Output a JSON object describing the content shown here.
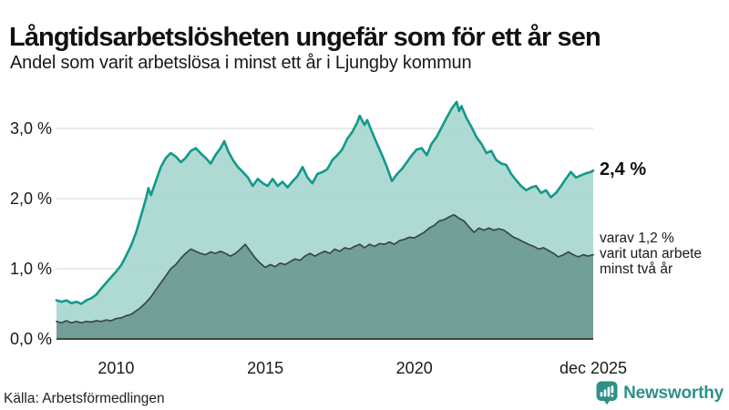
{
  "chart_data": {
    "type": "area",
    "title": "Långtidsarbetslösheten ungefär som för ett år sen",
    "subtitle": "Andel som varit arbetslösa i minst ett år i Ljungby kommun",
    "x_domain": [
      2008,
      2026
    ],
    "y_domain": [
      0,
      3.5
    ],
    "grid": true,
    "legend_position": "none",
    "colors": {
      "grid": "#d5d5d5",
      "axis": "#3d4443",
      "text": "#1a1a1a"
    },
    "y_ticks": [
      {
        "value": 0,
        "label": "0,0 %"
      },
      {
        "value": 1,
        "label": "1,0 %"
      },
      {
        "value": 2,
        "label": "2,0 %"
      },
      {
        "value": 3,
        "label": "3,0 %"
      }
    ],
    "x_ticks": [
      {
        "value": 2010,
        "label": "2010"
      },
      {
        "value": 2015,
        "label": "2015"
      },
      {
        "value": 2020,
        "label": "2020"
      },
      {
        "value": 2026,
        "label": "dec 2025"
      }
    ],
    "series": [
      {
        "name": "arbetslösa minst ett år",
        "color": "#12998b",
        "fill": "#abd8d1",
        "stroke_width": 2.6,
        "end_value": "2,4 %",
        "points": [
          [
            2008.0,
            0.55
          ],
          [
            2008.17,
            0.53
          ],
          [
            2008.33,
            0.55
          ],
          [
            2008.5,
            0.51
          ],
          [
            2008.67,
            0.53
          ],
          [
            2008.83,
            0.5
          ],
          [
            2009.0,
            0.55
          ],
          [
            2009.17,
            0.58
          ],
          [
            2009.33,
            0.63
          ],
          [
            2009.5,
            0.72
          ],
          [
            2009.67,
            0.8
          ],
          [
            2009.83,
            0.88
          ],
          [
            2010.0,
            0.96
          ],
          [
            2010.17,
            1.05
          ],
          [
            2010.33,
            1.18
          ],
          [
            2010.5,
            1.33
          ],
          [
            2010.67,
            1.52
          ],
          [
            2010.83,
            1.75
          ],
          [
            2011.0,
            2.0
          ],
          [
            2011.08,
            2.15
          ],
          [
            2011.17,
            2.05
          ],
          [
            2011.33,
            2.25
          ],
          [
            2011.5,
            2.45
          ],
          [
            2011.67,
            2.58
          ],
          [
            2011.83,
            2.65
          ],
          [
            2012.0,
            2.6
          ],
          [
            2012.17,
            2.52
          ],
          [
            2012.33,
            2.58
          ],
          [
            2012.5,
            2.68
          ],
          [
            2012.67,
            2.72
          ],
          [
            2012.83,
            2.65
          ],
          [
            2013.0,
            2.58
          ],
          [
            2013.17,
            2.5
          ],
          [
            2013.33,
            2.62
          ],
          [
            2013.5,
            2.72
          ],
          [
            2013.63,
            2.82
          ],
          [
            2013.75,
            2.68
          ],
          [
            2013.92,
            2.55
          ],
          [
            2014.08,
            2.45
          ],
          [
            2014.25,
            2.38
          ],
          [
            2014.42,
            2.3
          ],
          [
            2014.58,
            2.18
          ],
          [
            2014.75,
            2.28
          ],
          [
            2014.92,
            2.22
          ],
          [
            2015.08,
            2.18
          ],
          [
            2015.25,
            2.28
          ],
          [
            2015.42,
            2.18
          ],
          [
            2015.58,
            2.24
          ],
          [
            2015.75,
            2.16
          ],
          [
            2015.92,
            2.25
          ],
          [
            2016.08,
            2.32
          ],
          [
            2016.25,
            2.45
          ],
          [
            2016.42,
            2.3
          ],
          [
            2016.58,
            2.22
          ],
          [
            2016.75,
            2.35
          ],
          [
            2016.92,
            2.38
          ],
          [
            2017.08,
            2.42
          ],
          [
            2017.25,
            2.55
          ],
          [
            2017.42,
            2.62
          ],
          [
            2017.58,
            2.7
          ],
          [
            2017.75,
            2.85
          ],
          [
            2017.92,
            2.95
          ],
          [
            2018.08,
            3.08
          ],
          [
            2018.17,
            3.18
          ],
          [
            2018.33,
            3.05
          ],
          [
            2018.42,
            3.12
          ],
          [
            2018.58,
            2.95
          ],
          [
            2018.75,
            2.78
          ],
          [
            2018.92,
            2.62
          ],
          [
            2019.08,
            2.45
          ],
          [
            2019.25,
            2.25
          ],
          [
            2019.42,
            2.35
          ],
          [
            2019.58,
            2.42
          ],
          [
            2019.75,
            2.52
          ],
          [
            2019.92,
            2.62
          ],
          [
            2020.08,
            2.7
          ],
          [
            2020.25,
            2.72
          ],
          [
            2020.42,
            2.62
          ],
          [
            2020.58,
            2.78
          ],
          [
            2020.75,
            2.88
          ],
          [
            2020.92,
            3.02
          ],
          [
            2021.08,
            3.15
          ],
          [
            2021.25,
            3.28
          ],
          [
            2021.42,
            3.38
          ],
          [
            2021.5,
            3.25
          ],
          [
            2021.58,
            3.32
          ],
          [
            2021.75,
            3.15
          ],
          [
            2021.92,
            3.02
          ],
          [
            2022.08,
            2.88
          ],
          [
            2022.25,
            2.78
          ],
          [
            2022.42,
            2.65
          ],
          [
            2022.58,
            2.68
          ],
          [
            2022.75,
            2.55
          ],
          [
            2022.92,
            2.5
          ],
          [
            2023.08,
            2.48
          ],
          [
            2023.25,
            2.35
          ],
          [
            2023.42,
            2.26
          ],
          [
            2023.58,
            2.18
          ],
          [
            2023.75,
            2.12
          ],
          [
            2023.92,
            2.16
          ],
          [
            2024.08,
            2.18
          ],
          [
            2024.25,
            2.08
          ],
          [
            2024.42,
            2.12
          ],
          [
            2024.58,
            2.02
          ],
          [
            2024.75,
            2.08
          ],
          [
            2024.92,
            2.18
          ],
          [
            2025.08,
            2.28
          ],
          [
            2025.25,
            2.38
          ],
          [
            2025.42,
            2.3
          ],
          [
            2025.58,
            2.33
          ],
          [
            2025.75,
            2.36
          ],
          [
            2025.92,
            2.38
          ],
          [
            2026.0,
            2.4
          ]
        ]
      },
      {
        "name": "arbetslösa minst två år",
        "color": "#37474a",
        "fill": "#6f9c95",
        "stroke_width": 1.7,
        "end_value": "1,2 %",
        "points": [
          [
            2008.0,
            0.25
          ],
          [
            2008.17,
            0.23
          ],
          [
            2008.33,
            0.26
          ],
          [
            2008.5,
            0.23
          ],
          [
            2008.67,
            0.25
          ],
          [
            2008.83,
            0.23
          ],
          [
            2009.0,
            0.25
          ],
          [
            2009.17,
            0.24
          ],
          [
            2009.33,
            0.26
          ],
          [
            2009.5,
            0.25
          ],
          [
            2009.67,
            0.27
          ],
          [
            2009.83,
            0.26
          ],
          [
            2010.0,
            0.29
          ],
          [
            2010.17,
            0.3
          ],
          [
            2010.33,
            0.33
          ],
          [
            2010.5,
            0.35
          ],
          [
            2010.67,
            0.4
          ],
          [
            2010.83,
            0.45
          ],
          [
            2011.0,
            0.52
          ],
          [
            2011.17,
            0.6
          ],
          [
            2011.33,
            0.7
          ],
          [
            2011.5,
            0.8
          ],
          [
            2011.67,
            0.9
          ],
          [
            2011.83,
            1.0
          ],
          [
            2012.0,
            1.06
          ],
          [
            2012.17,
            1.15
          ],
          [
            2012.33,
            1.22
          ],
          [
            2012.5,
            1.28
          ],
          [
            2012.67,
            1.25
          ],
          [
            2012.83,
            1.22
          ],
          [
            2013.0,
            1.2
          ],
          [
            2013.17,
            1.24
          ],
          [
            2013.33,
            1.22
          ],
          [
            2013.5,
            1.25
          ],
          [
            2013.67,
            1.22
          ],
          [
            2013.83,
            1.18
          ],
          [
            2014.0,
            1.22
          ],
          [
            2014.17,
            1.28
          ],
          [
            2014.33,
            1.35
          ],
          [
            2014.5,
            1.25
          ],
          [
            2014.67,
            1.15
          ],
          [
            2014.83,
            1.08
          ],
          [
            2015.0,
            1.02
          ],
          [
            2015.17,
            1.06
          ],
          [
            2015.33,
            1.03
          ],
          [
            2015.5,
            1.08
          ],
          [
            2015.67,
            1.06
          ],
          [
            2015.83,
            1.1
          ],
          [
            2016.0,
            1.14
          ],
          [
            2016.17,
            1.12
          ],
          [
            2016.33,
            1.18
          ],
          [
            2016.5,
            1.22
          ],
          [
            2016.67,
            1.18
          ],
          [
            2016.83,
            1.22
          ],
          [
            2017.0,
            1.25
          ],
          [
            2017.17,
            1.22
          ],
          [
            2017.33,
            1.28
          ],
          [
            2017.5,
            1.25
          ],
          [
            2017.67,
            1.3
          ],
          [
            2017.83,
            1.28
          ],
          [
            2018.0,
            1.32
          ],
          [
            2018.17,
            1.35
          ],
          [
            2018.33,
            1.3
          ],
          [
            2018.5,
            1.35
          ],
          [
            2018.67,
            1.32
          ],
          [
            2018.83,
            1.36
          ],
          [
            2019.0,
            1.35
          ],
          [
            2019.17,
            1.38
          ],
          [
            2019.33,
            1.35
          ],
          [
            2019.5,
            1.4
          ],
          [
            2019.67,
            1.42
          ],
          [
            2019.83,
            1.45
          ],
          [
            2020.0,
            1.44
          ],
          [
            2020.17,
            1.48
          ],
          [
            2020.33,
            1.52
          ],
          [
            2020.5,
            1.58
          ],
          [
            2020.67,
            1.62
          ],
          [
            2020.83,
            1.68
          ],
          [
            2021.0,
            1.7
          ],
          [
            2021.17,
            1.74
          ],
          [
            2021.33,
            1.77
          ],
          [
            2021.5,
            1.72
          ],
          [
            2021.67,
            1.68
          ],
          [
            2021.83,
            1.6
          ],
          [
            2022.0,
            1.52
          ],
          [
            2022.17,
            1.58
          ],
          [
            2022.33,
            1.55
          ],
          [
            2022.5,
            1.58
          ],
          [
            2022.67,
            1.55
          ],
          [
            2022.83,
            1.57
          ],
          [
            2023.0,
            1.55
          ],
          [
            2023.17,
            1.5
          ],
          [
            2023.33,
            1.45
          ],
          [
            2023.5,
            1.42
          ],
          [
            2023.67,
            1.38
          ],
          [
            2023.83,
            1.35
          ],
          [
            2024.0,
            1.32
          ],
          [
            2024.17,
            1.28
          ],
          [
            2024.33,
            1.3
          ],
          [
            2024.5,
            1.26
          ],
          [
            2024.67,
            1.22
          ],
          [
            2024.83,
            1.17
          ],
          [
            2025.0,
            1.2
          ],
          [
            2025.17,
            1.24
          ],
          [
            2025.33,
            1.2
          ],
          [
            2025.5,
            1.17
          ],
          [
            2025.67,
            1.2
          ],
          [
            2025.83,
            1.18
          ],
          [
            2026.0,
            1.2
          ]
        ]
      }
    ],
    "annotations": {
      "end_value_label": "2,4 %",
      "note_lines": [
        "varav 1,2 %",
        "varit utan arbete",
        "minst två år"
      ]
    }
  },
  "footer": {
    "source": "Källa: Arbetsförmedlingen",
    "brand_name": "Newsworthy",
    "brand_color": "#2f9088"
  }
}
